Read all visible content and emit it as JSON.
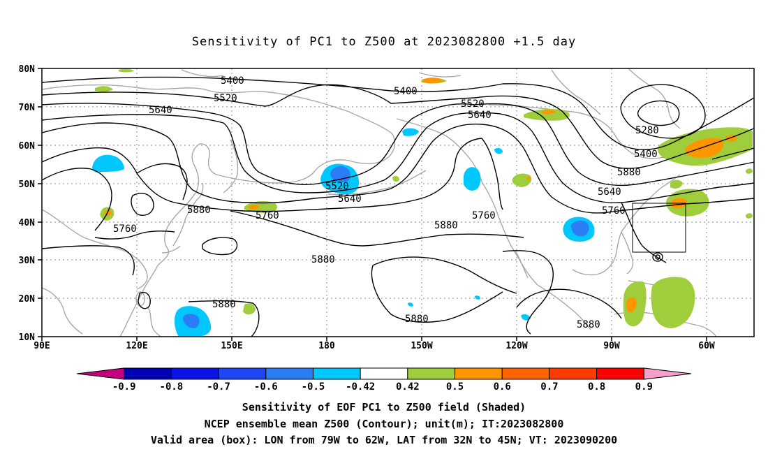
{
  "title": "Sensitivity of PC1 to Z500 at 2023082800 +1.5 day",
  "lat_labels": [
    "80N",
    "70N",
    "60N",
    "50N",
    "40N",
    "30N",
    "20N",
    "10N"
  ],
  "lon_labels": [
    "90E",
    "120E",
    "150E",
    "180",
    "150W",
    "120W",
    "90W",
    "60W"
  ],
  "contour_labels": [
    "5400",
    "5400",
    "5520",
    "5520",
    "5640",
    "5640",
    "5760",
    "5880",
    "5880",
    "5880",
    "5880",
    "5880",
    "5880",
    "5760",
    "5640",
    "5520",
    "5400",
    "5280",
    "5760",
    "5640",
    "5760",
    "5880"
  ],
  "colorbar": {
    "labels": [
      "-0.9",
      "-0.8",
      "-0.7",
      "-0.6",
      "-0.5",
      "-0.42",
      "0.42",
      "0.5",
      "0.6",
      "0.7",
      "0.8",
      "0.9"
    ],
    "colors": [
      "#c4007f",
      "#0000b4",
      "#0a14e6",
      "#1f46f5",
      "#2b7cf5",
      "#00c8ff",
      "#ffffff",
      "#a0cd3c",
      "#ff9600",
      "#ff6400",
      "#ff3c00",
      "#ff0000",
      "#f5a0c8"
    ]
  },
  "shading_colors": {
    "land_outline": "#a8a8a8",
    "green": "#a0cd3c",
    "orange": "#ff9600",
    "cyan": "#00c8ff",
    "blue": "#2b7cf5"
  },
  "captions": {
    "line1": "Sensitivity of EOF PC1 to Z500 field (Shaded)",
    "line2": "NCEP ensemble mean Z500 (Contour); unit(m); IT:2023082800",
    "line3": "Valid area (box): LON from 79W to 62W, LAT from 32N to 45N; VT: 2023090200"
  }
}
